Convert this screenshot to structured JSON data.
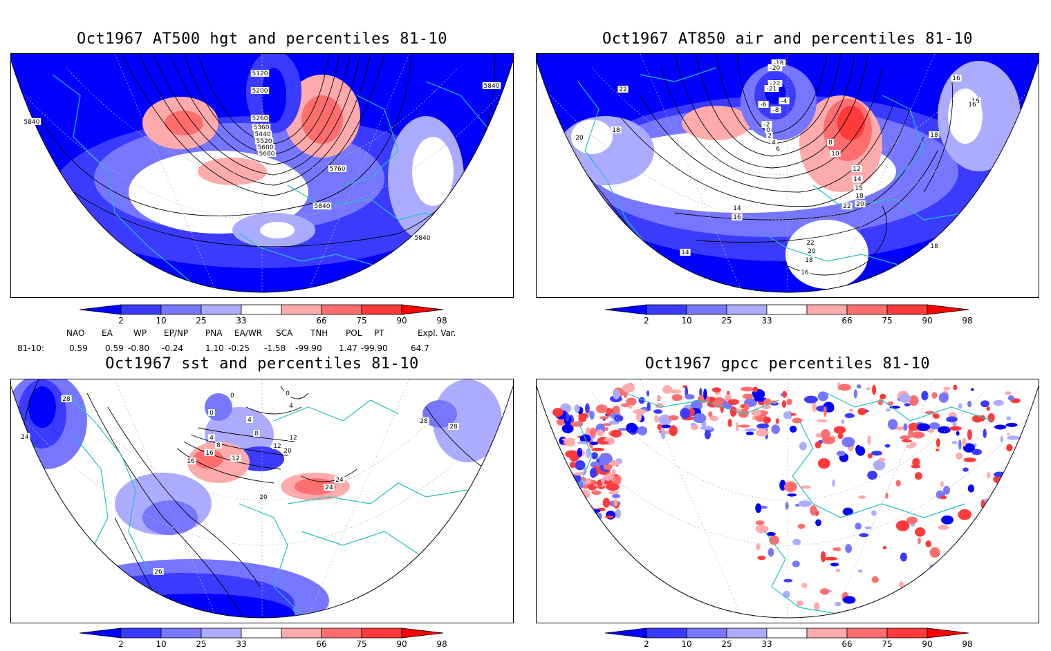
{
  "panels": {
    "hgt": {
      "title": "Oct1967 AT500 hgt and percentiles 81-10",
      "contours": [
        "5120",
        "5200",
        "5260",
        "5360",
        "5440",
        "5520",
        "5600",
        "5680",
        "5760",
        "5840",
        "5840",
        "5840",
        "5840"
      ]
    },
    "air": {
      "title": "Oct1967 AT850 air and percentiles 81-10",
      "contours": [
        "-18",
        "-20",
        "-22",
        "-21",
        "-6",
        "-4",
        "-8",
        "-2",
        "0",
        "2",
        "4",
        "6",
        "8",
        "10",
        "12",
        "14",
        "15",
        "18",
        "20",
        "22",
        "22",
        "20",
        "18",
        "16",
        "14",
        "16",
        "18",
        "20",
        "22",
        "16",
        "18",
        "16",
        "14",
        "16",
        "18"
      ]
    },
    "sst": {
      "title": "Oct1967 sst and percentiles 81-10",
      "contours": [
        "28",
        "24",
        "0",
        "0",
        "0",
        "4",
        "4",
        "4",
        "8",
        "8",
        "12",
        "12",
        "16",
        "16",
        "20",
        "24",
        "24",
        "28",
        "28",
        "26",
        "20",
        "12"
      ]
    },
    "gpcc": {
      "title": "Oct1967 gpcc percentiles 81-10"
    }
  },
  "colorbar": {
    "labels": [
      "2",
      "10",
      "25",
      "33",
      "66",
      "75",
      "90",
      "98"
    ],
    "colors": [
      "#0000ff",
      "#3b3bff",
      "#7676ff",
      "#ababff",
      "#ffffff",
      "#ffabab",
      "#ff6e6e",
      "#ff3a3a",
      "#ff0000"
    ]
  },
  "indices": {
    "headers": [
      "NAO",
      "EA",
      "WP",
      "EP/NP",
      "PNA",
      "EA/WR",
      "SCA",
      "TNH",
      "POL",
      "PT",
      "Expl. Var."
    ],
    "row_label": "81-10:",
    "values": [
      "0.59",
      "0.59",
      "-0.80",
      "-0.24",
      "1.10",
      "-0.25",
      "-1.58",
      "-99.90",
      "1.47",
      "-99.90",
      "64.7"
    ]
  },
  "colors": {
    "coast": "#20c0c0",
    "contour": "#000000",
    "grid": "#bbbbbb"
  }
}
